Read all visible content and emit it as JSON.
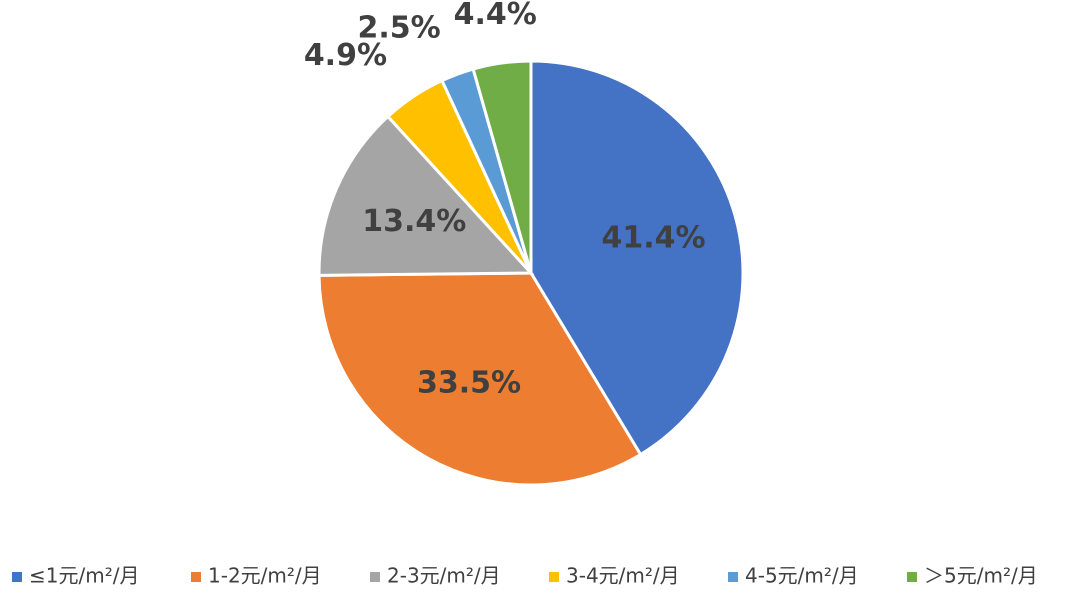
{
  "chart_data": {
    "type": "pie",
    "categories": [
      "≤1元/m²/月",
      "1-2元/m²/月",
      "2-3元/m²/月",
      "3-4元/m²/月",
      "4-5元/m²/月",
      "＞5元/m²/月"
    ],
    "values": [
      41.4,
      33.5,
      13.4,
      4.9,
      2.5,
      4.4
    ],
    "value_labels": [
      "41.4%",
      "33.5%",
      "13.4%",
      "4.9%",
      "2.5%",
      "4.4%"
    ],
    "colors": [
      "#4472c4",
      "#ed7d31",
      "#a5a5a5",
      "#ffc000",
      "#5b9bd5",
      "#70ad47"
    ],
    "legend": "bottom"
  }
}
